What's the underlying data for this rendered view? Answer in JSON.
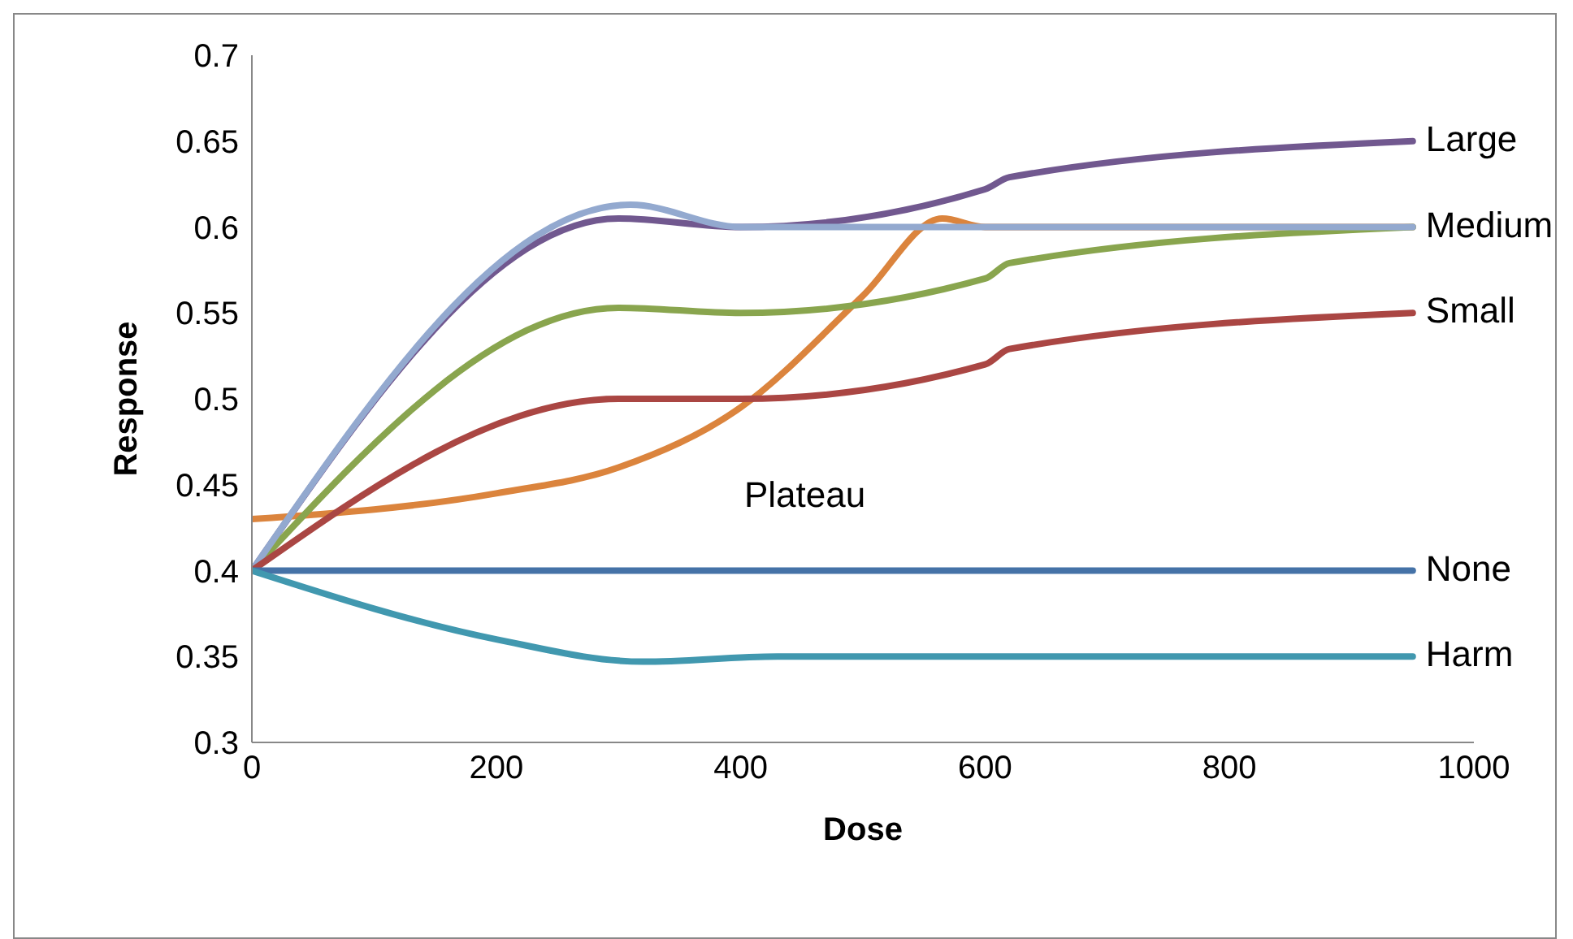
{
  "chart_data": {
    "type": "line",
    "xlabel": "Dose",
    "ylabel": "Response",
    "xlim": [
      0,
      1000
    ],
    "xticks": [
      0,
      200,
      400,
      600,
      800,
      1000
    ],
    "ylim": [
      0.3,
      0.7
    ],
    "yticks": [
      0.3,
      0.35,
      0.4,
      0.45,
      0.5,
      0.55,
      0.6,
      0.65,
      0.7
    ],
    "grid": false,
    "legend": false,
    "marker": "none",
    "line_style": "solid",
    "annotations": [
      "Plateau"
    ],
    "series": [
      {
        "name": "Large",
        "color": "#71588f",
        "x": [
          0,
          300,
          400,
          600,
          620,
          950
        ],
        "values": [
          0.4,
          0.605,
          0.6,
          0.622,
          0.629,
          0.65
        ]
      },
      {
        "color": "#db843d",
        "x": [
          0,
          200,
          300,
          400,
          500,
          565,
          600,
          950
        ],
        "values": [
          0.43,
          0.445,
          0.46,
          0.495,
          0.56,
          0.605,
          0.6,
          0.6
        ]
      },
      {
        "name": "Medium",
        "color": "#89a54e",
        "x": [
          0,
          300,
          400,
          600,
          620,
          950
        ],
        "values": [
          0.4,
          0.553,
          0.55,
          0.57,
          0.579,
          0.6
        ]
      },
      {
        "color": "#93a9cf",
        "x": [
          0,
          310,
          400,
          600,
          950
        ],
        "values": [
          0.4,
          0.613,
          0.6,
          0.6,
          0.6
        ]
      },
      {
        "name": "Small",
        "color": "#aa4643",
        "x": [
          0,
          300,
          400,
          600,
          620,
          950
        ],
        "values": [
          0.4,
          0.5,
          0.5,
          0.52,
          0.529,
          0.55
        ]
      },
      {
        "name": "None",
        "color": "#4572a7",
        "x": [
          0,
          950
        ],
        "values": [
          0.4,
          0.4
        ]
      },
      {
        "name": "Harm",
        "color": "#4198af",
        "x": [
          0,
          200,
          320,
          430,
          950
        ],
        "values": [
          0.4,
          0.36,
          0.347,
          0.35,
          0.35
        ]
      }
    ]
  }
}
